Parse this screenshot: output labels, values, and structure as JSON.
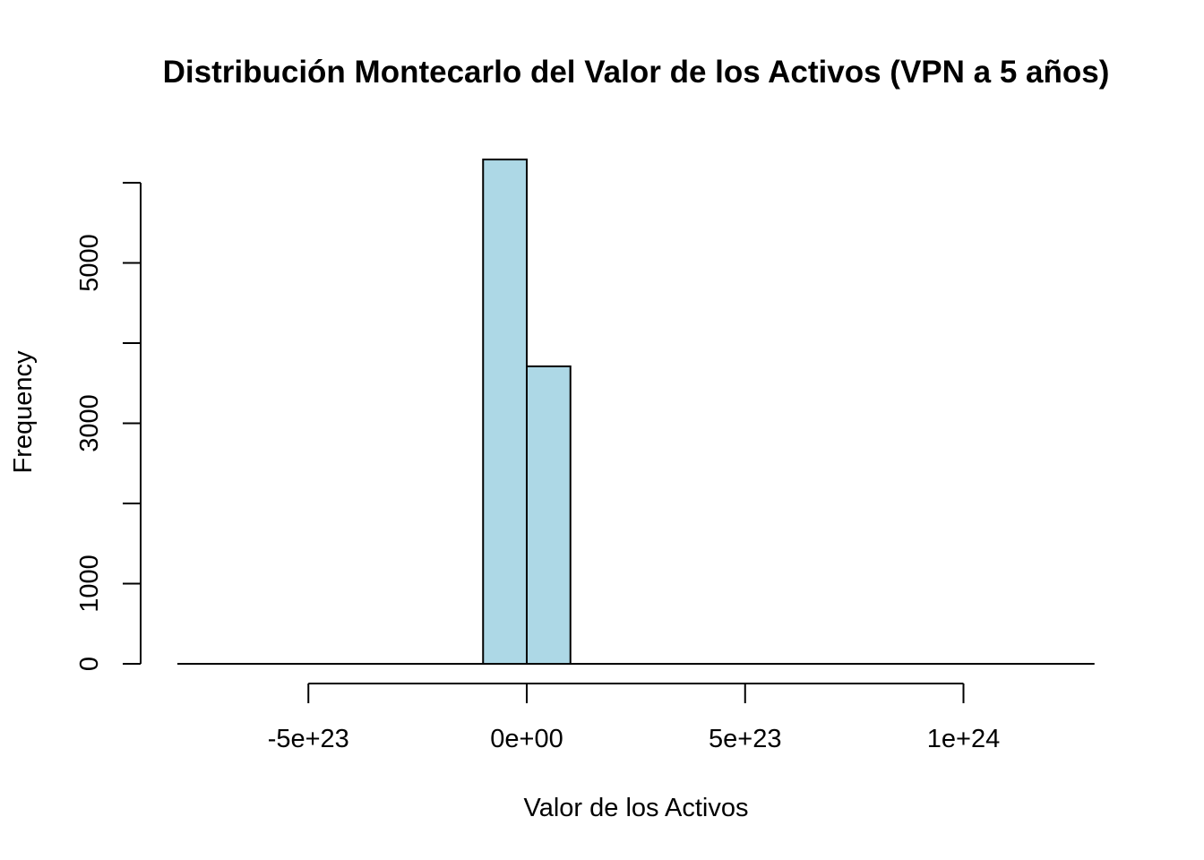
{
  "chart_data": {
    "type": "bar",
    "title": "Distribución Montecarlo del Valor de los Activos (VPN a 5 años)",
    "xlabel": "Valor de los Activos",
    "ylabel": "Frequency",
    "bar_color": "#ADD8E6",
    "border_color": "#000000",
    "grid": false,
    "legend": "none",
    "xlim": [
      -8.5e+23,
      1.3e+24
    ],
    "ylim": [
      0,
      6300
    ],
    "x_axis_ticks": [
      -5e+23,
      0,
      5e+23,
      1e+24
    ],
    "x_tick_labels": [
      "-5e+23",
      "0e+00",
      "5e+23",
      "1e+24"
    ],
    "y_axis_ticks": [
      0,
      1000,
      2000,
      3000,
      4000,
      5000,
      6000
    ],
    "y_tick_labels": [
      "0",
      "1000",
      "3000",
      "5000"
    ],
    "y_labeled_ticks": [
      0,
      1000,
      3000,
      5000
    ],
    "bins": [
      {
        "start": -1e+23,
        "end": 0,
        "count": 6290
      },
      {
        "start": 0,
        "end": 1e+23,
        "count": 3710
      }
    ],
    "baseline_range": [
      -8e+23,
      1.3e+24
    ]
  }
}
